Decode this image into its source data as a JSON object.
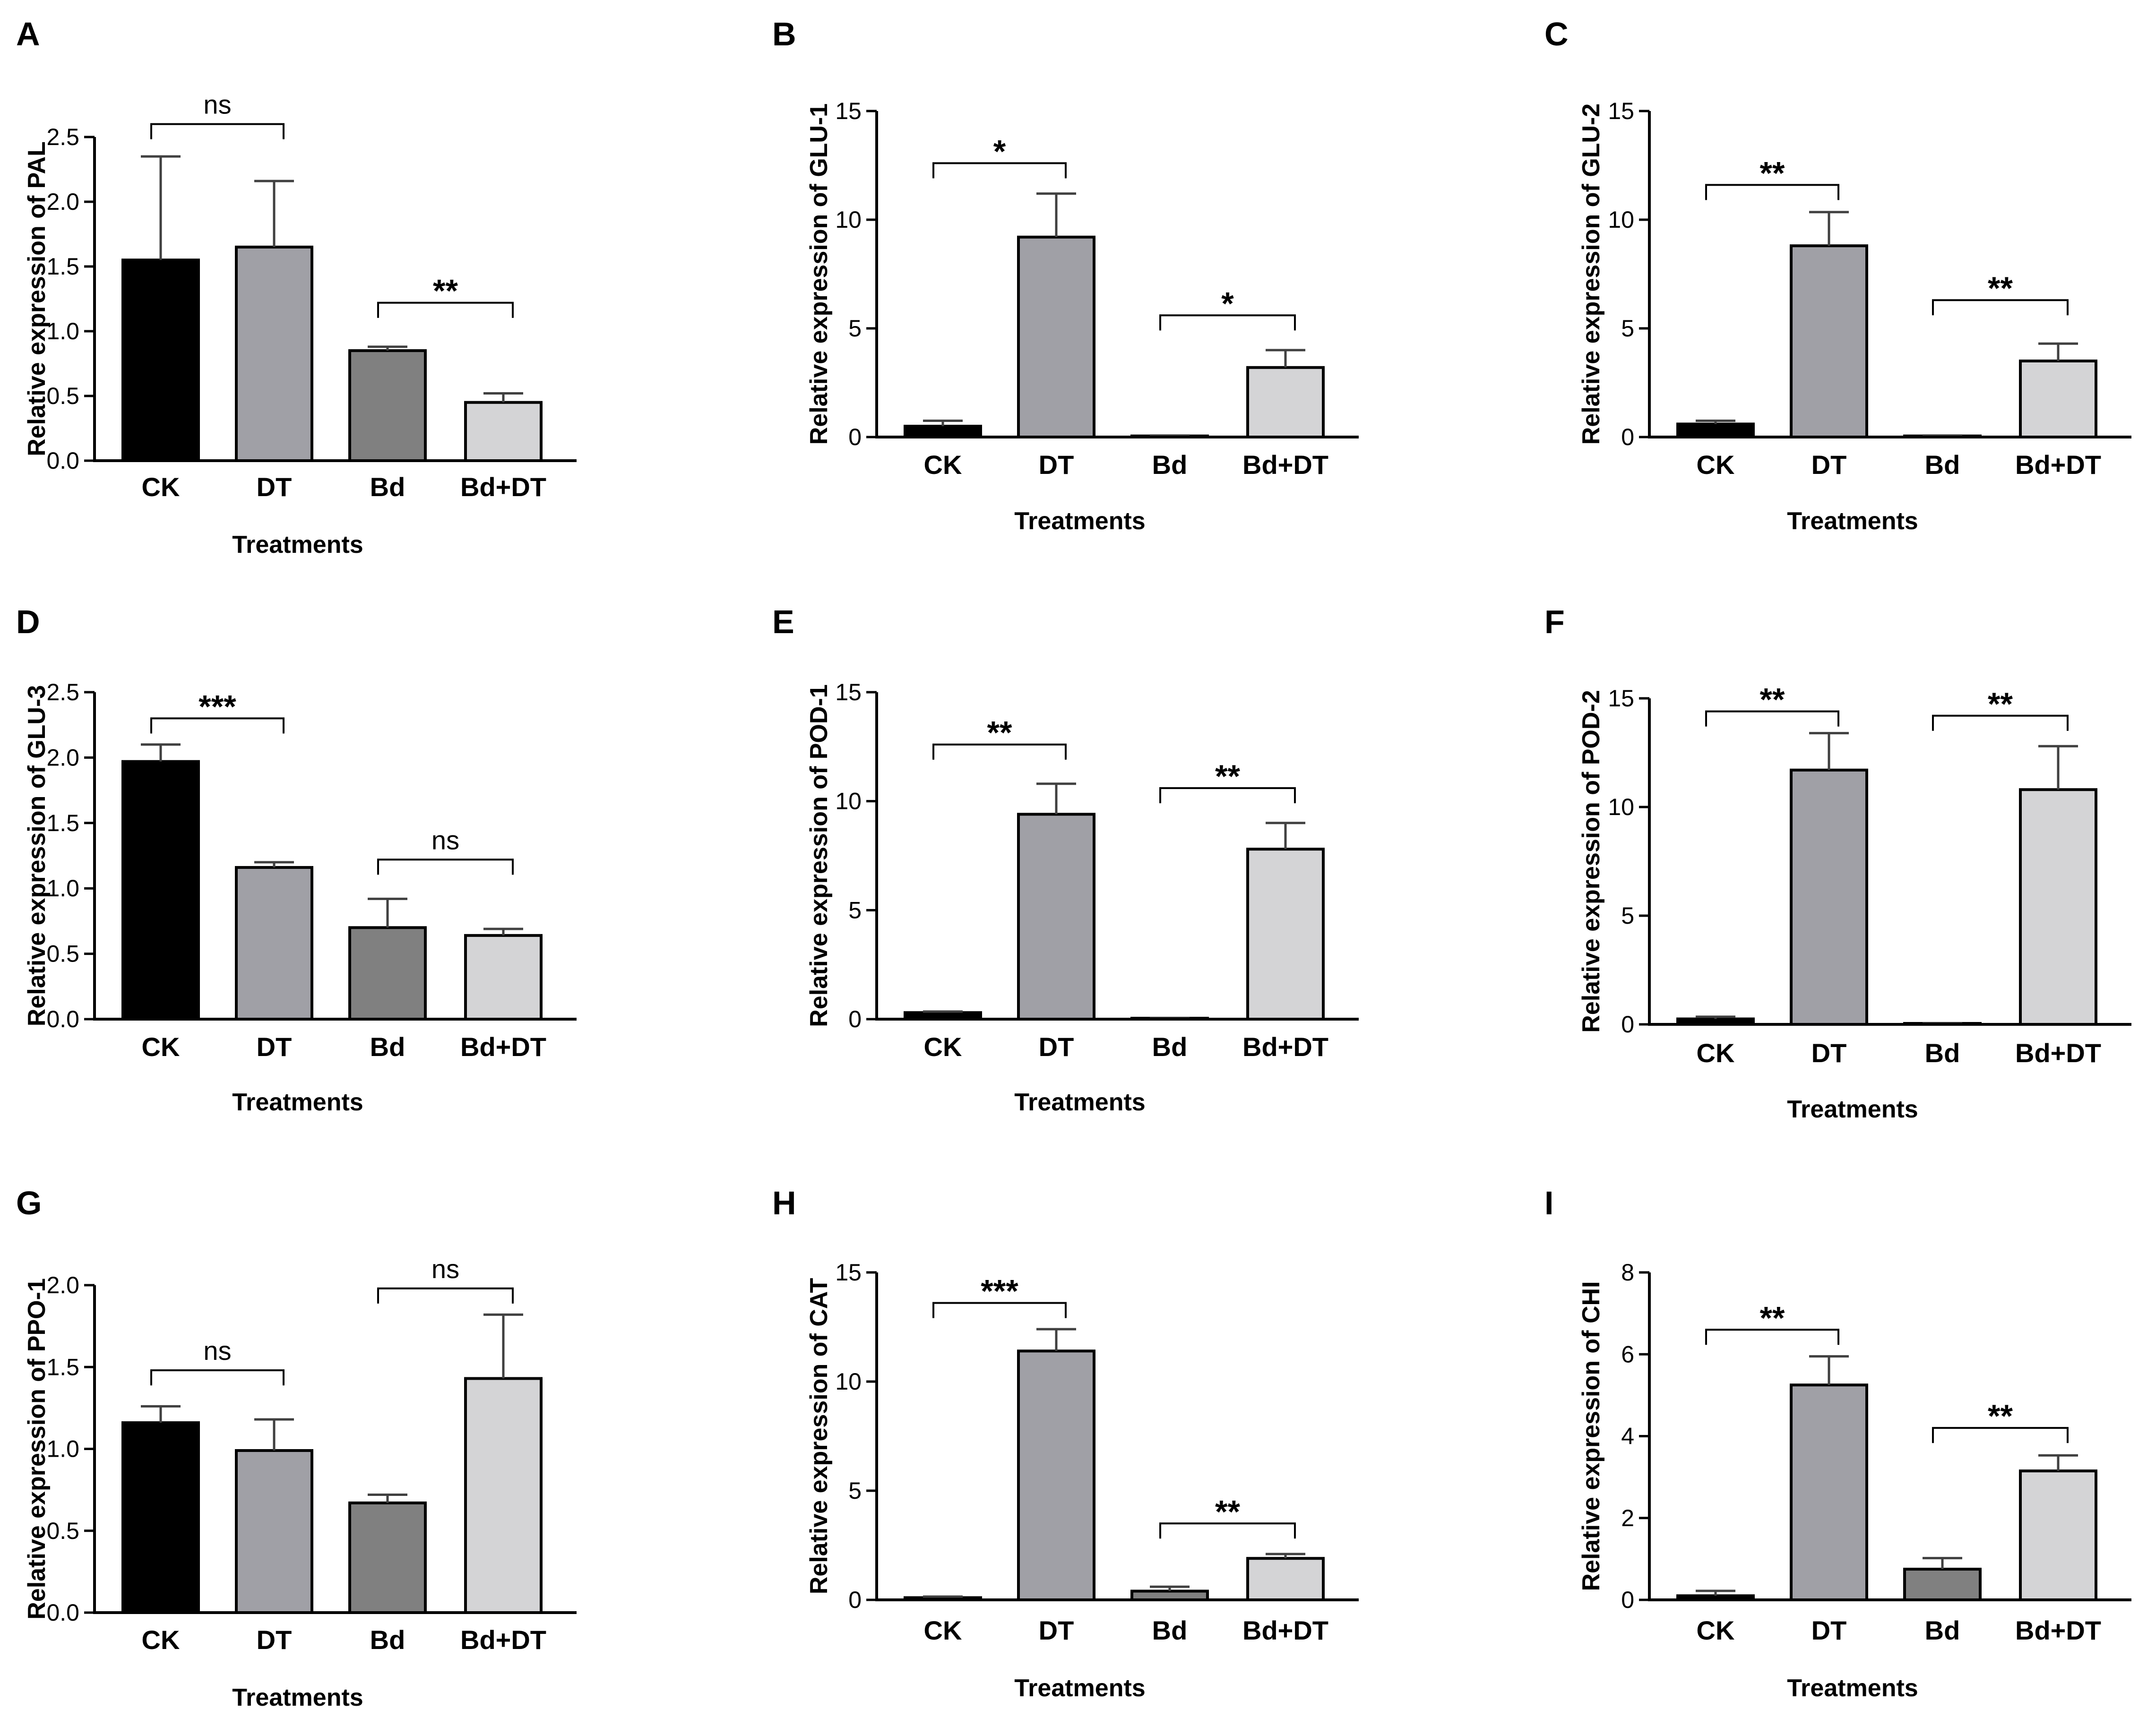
{
  "figure": {
    "colors": {
      "CK": "#000000",
      "DT": "#a0a0a6",
      "Bd": "#808080",
      "Bd+DT": "#d4d4d6",
      "axis": "#000000",
      "error": "#404040"
    },
    "categories": [
      "CK",
      "DT",
      "Bd",
      "Bd+DT"
    ]
  },
  "chart_data": [
    {
      "type": "bar",
      "panel": "A",
      "title": "",
      "xlabel": "Treatments",
      "ylabel": "Relative expression of PAL",
      "categories": [
        "CK",
        "DT",
        "Bd",
        "Bd+DT"
      ],
      "values": [
        1.55,
        1.65,
        0.85,
        0.45
      ],
      "errors": [
        0.8,
        0.51,
        0.03,
        0.07
      ],
      "ylim": [
        0,
        2.5
      ],
      "yticks": [
        "0.0",
        "0.5",
        "1.0",
        "1.5",
        "2.0",
        "2.5"
      ],
      "significance": [
        {
          "from": 0,
          "to": 1,
          "label": "ns",
          "y": 2.6
        },
        {
          "from": 2,
          "to": 3,
          "label": "**",
          "y": 1.22
        }
      ]
    },
    {
      "type": "bar",
      "panel": "B",
      "title": "",
      "xlabel": "Treatments",
      "ylabel": "Relative expression of GLU-1",
      "categories": [
        "CK",
        "DT",
        "Bd",
        "Bd+DT"
      ],
      "values": [
        0.5,
        9.2,
        0.05,
        3.2
      ],
      "errors": [
        0.25,
        2.0,
        0.02,
        0.8
      ],
      "ylim": [
        0,
        15
      ],
      "yticks": [
        "0",
        "5",
        "10",
        "15"
      ],
      "significance": [
        {
          "from": 0,
          "to": 1,
          "label": "*",
          "y": 12.6
        },
        {
          "from": 2,
          "to": 3,
          "label": "*",
          "y": 5.6
        }
      ]
    },
    {
      "type": "bar",
      "panel": "C",
      "title": "",
      "xlabel": "Treatments",
      "ylabel": "Relative expression of GLU-2",
      "categories": [
        "CK",
        "DT",
        "Bd",
        "Bd+DT"
      ],
      "values": [
        0.6,
        8.8,
        0.05,
        3.5
      ],
      "errors": [
        0.15,
        1.55,
        0.02,
        0.8
      ],
      "ylim": [
        0,
        15
      ],
      "yticks": [
        "0",
        "5",
        "10",
        "15"
      ],
      "significance": [
        {
          "from": 0,
          "to": 1,
          "label": "**",
          "y": 11.6
        },
        {
          "from": 2,
          "to": 3,
          "label": "**",
          "y": 6.3
        }
      ]
    },
    {
      "type": "bar",
      "panel": "D",
      "title": "",
      "xlabel": "Treatments",
      "ylabel": "Relative expression of GLU-3",
      "categories": [
        "CK",
        "DT",
        "Bd",
        "Bd+DT"
      ],
      "values": [
        1.97,
        1.16,
        0.7,
        0.64
      ],
      "errors": [
        0.13,
        0.04,
        0.22,
        0.05
      ],
      "ylim": [
        0,
        2.5
      ],
      "yticks": [
        "0.0",
        "0.5",
        "1.0",
        "1.5",
        "2.0",
        "2.5"
      ],
      "significance": [
        {
          "from": 0,
          "to": 1,
          "label": "***",
          "y": 2.3
        },
        {
          "from": 2,
          "to": 3,
          "label": "ns",
          "y": 1.22
        }
      ]
    },
    {
      "type": "bar",
      "panel": "E",
      "title": "",
      "xlabel": "Treatments",
      "ylabel": "Relative expression of POD-1",
      "categories": [
        "CK",
        "DT",
        "Bd",
        "Bd+DT"
      ],
      "values": [
        0.3,
        9.4,
        0.03,
        7.8
      ],
      "errors": [
        0.05,
        1.4,
        0.01,
        1.2
      ],
      "ylim": [
        0,
        15
      ],
      "yticks": [
        "0",
        "5",
        "10",
        "15"
      ],
      "significance": [
        {
          "from": 0,
          "to": 1,
          "label": "**",
          "y": 12.6
        },
        {
          "from": 2,
          "to": 3,
          "label": "**",
          "y": 10.6
        }
      ]
    },
    {
      "type": "bar",
      "panel": "F",
      "title": "",
      "xlabel": "Treatments",
      "ylabel": "Relative expression of POD-2",
      "categories": [
        "CK",
        "DT",
        "Bd",
        "Bd+DT"
      ],
      "values": [
        0.25,
        11.7,
        0.03,
        10.8
      ],
      "errors": [
        0.1,
        1.7,
        0.01,
        2.0
      ],
      "ylim": [
        0,
        15
      ],
      "yticks": [
        "0",
        "5",
        "10",
        "15"
      ],
      "significance": [
        {
          "from": 0,
          "to": 1,
          "label": "**",
          "y": 14.4
        },
        {
          "from": 2,
          "to": 3,
          "label": "**",
          "y": 14.2
        }
      ]
    },
    {
      "type": "bar",
      "panel": "G",
      "title": "",
      "xlabel": "Treatments",
      "ylabel": "Relative expression of PPO-1",
      "categories": [
        "CK",
        "DT",
        "Bd",
        "Bd+DT"
      ],
      "values": [
        1.16,
        0.99,
        0.67,
        1.43
      ],
      "errors": [
        0.1,
        0.19,
        0.05,
        0.39
      ],
      "ylim": [
        0,
        2.0
      ],
      "yticks": [
        "0.0",
        "0.5",
        "1.0",
        "1.5",
        "2.0"
      ],
      "significance": [
        {
          "from": 0,
          "to": 1,
          "label": "ns",
          "y": 1.48
        },
        {
          "from": 2,
          "to": 3,
          "label": "ns",
          "y": 1.98
        }
      ]
    },
    {
      "type": "bar",
      "panel": "H",
      "title": "",
      "xlabel": "Treatments",
      "ylabel": "Relative expression of CAT",
      "categories": [
        "CK",
        "DT",
        "Bd",
        "Bd+DT"
      ],
      "values": [
        0.1,
        11.4,
        0.4,
        1.9
      ],
      "errors": [
        0.05,
        1.0,
        0.2,
        0.2
      ],
      "ylim": [
        0,
        15
      ],
      "yticks": [
        "0",
        "5",
        "10",
        "15"
      ],
      "significance": [
        {
          "from": 0,
          "to": 1,
          "label": "***",
          "y": 13.6
        },
        {
          "from": 2,
          "to": 3,
          "label": "**",
          "y": 3.5
        }
      ]
    },
    {
      "type": "bar",
      "panel": "I",
      "title": "",
      "xlabel": "Treatments",
      "ylabel": "Relative expression of CHI",
      "categories": [
        "CK",
        "DT",
        "Bd",
        "Bd+DT"
      ],
      "values": [
        0.1,
        5.25,
        0.75,
        3.15
      ],
      "errors": [
        0.12,
        0.7,
        0.27,
        0.38
      ],
      "ylim": [
        0,
        8
      ],
      "yticks": [
        "0",
        "2",
        "4",
        "6",
        "8"
      ],
      "significance": [
        {
          "from": 0,
          "to": 1,
          "label": "**",
          "y": 6.6
        },
        {
          "from": 2,
          "to": 3,
          "label": "**",
          "y": 4.2
        }
      ]
    }
  ]
}
